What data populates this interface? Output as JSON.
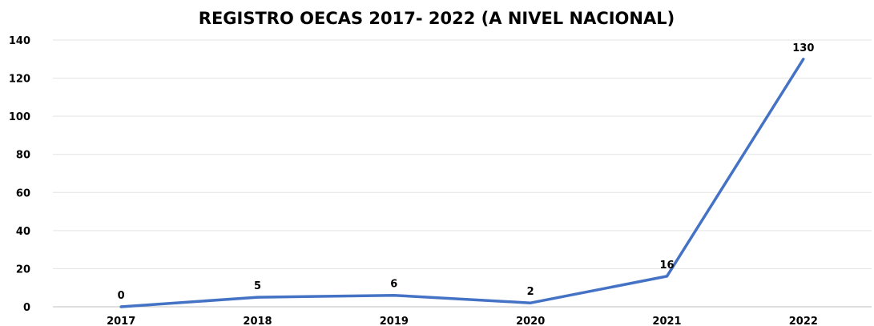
{
  "chart_data": {
    "type": "line",
    "title": "REGISTRO OECAS 2017- 2022 (A NIVEL NACIONAL)",
    "xlabel": "",
    "ylabel": "",
    "categories": [
      "2017",
      "2018",
      "2019",
      "2020",
      "2021",
      "2022"
    ],
    "series": [
      {
        "values": [
          0,
          5,
          6,
          2,
          16,
          130
        ],
        "color": "#4472C4"
      }
    ],
    "ylim": [
      0,
      140
    ],
    "yticks": [
      0,
      20,
      40,
      60,
      80,
      100,
      120,
      140
    ],
    "grid": true,
    "legend": "none",
    "data_labels": true
  }
}
